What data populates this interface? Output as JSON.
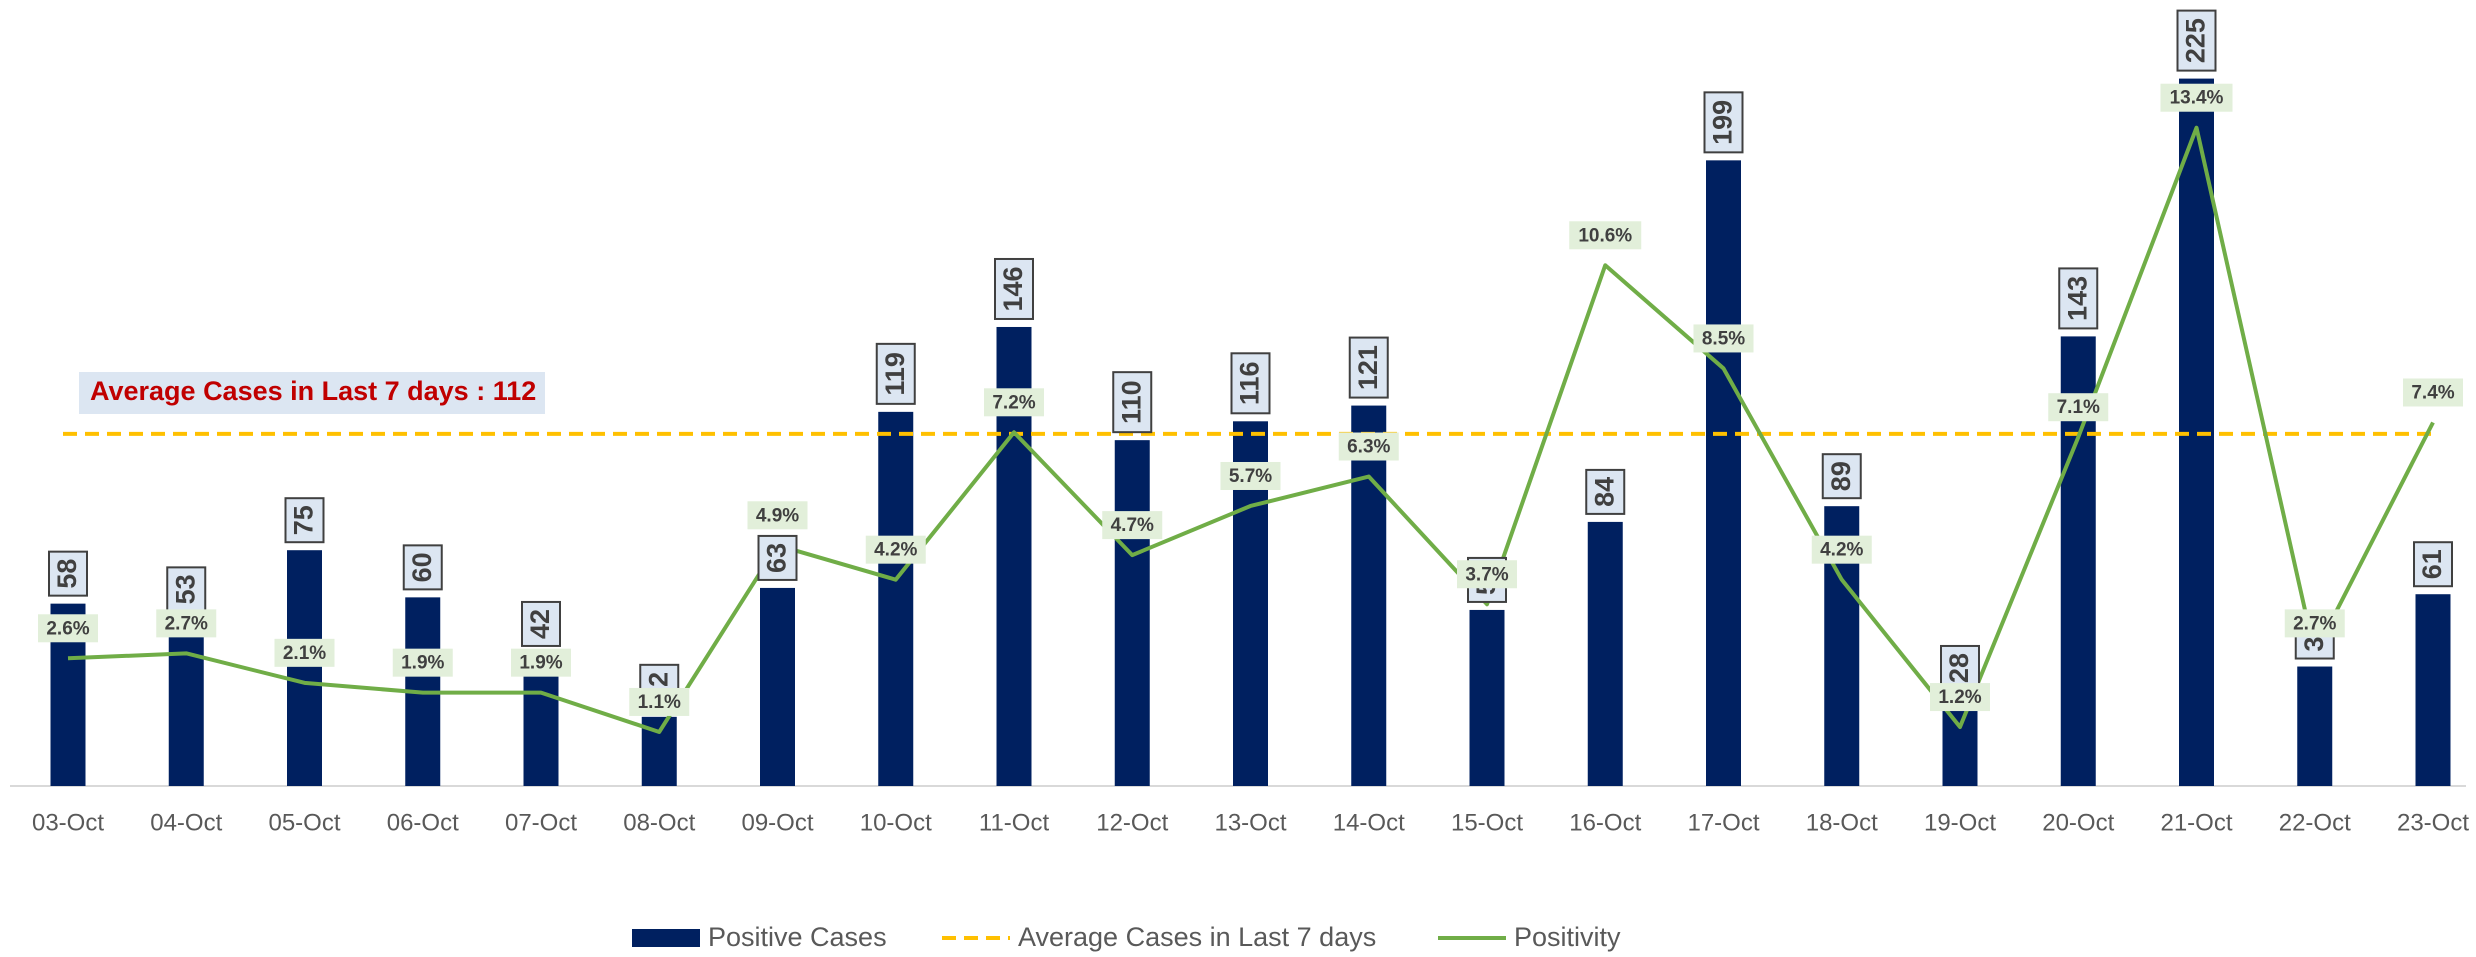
{
  "chart_data": {
    "type": "bar_line",
    "categories": [
      "03-Oct",
      "04-Oct",
      "05-Oct",
      "06-Oct",
      "07-Oct",
      "08-Oct",
      "09-Oct",
      "10-Oct",
      "11-Oct",
      "12-Oct",
      "13-Oct",
      "14-Oct",
      "15-Oct",
      "16-Oct",
      "17-Oct",
      "18-Oct",
      "19-Oct",
      "20-Oct",
      "21-Oct",
      "22-Oct",
      "23-Oct"
    ],
    "series": [
      {
        "name": "Positive Cases",
        "color": "#002060",
        "type": "bar",
        "values": [
          58,
          53,
          75,
          60,
          42,
          22,
          63,
          119,
          146,
          110,
          116,
          121,
          56,
          84,
          199,
          89,
          28,
          143,
          225,
          38,
          61
        ]
      },
      {
        "name": "Average Cases in Last 7 days",
        "color": "#ffc000",
        "type": "dashed-line",
        "values": [
          112,
          112,
          112,
          112,
          112,
          112,
          112,
          112,
          112,
          112,
          112,
          112,
          112,
          112,
          112,
          112,
          112,
          112,
          112,
          112,
          112
        ]
      },
      {
        "name": "Positivity",
        "color": "#70ad47",
        "type": "line",
        "axis": "y2",
        "values": [
          2.6,
          2.7,
          2.1,
          1.9,
          1.9,
          1.1,
          4.9,
          4.2,
          7.2,
          4.7,
          5.7,
          6.3,
          3.7,
          10.6,
          8.5,
          4.2,
          1.2,
          7.1,
          13.4,
          2.7,
          7.4
        ],
        "value_labels": [
          "2.6%",
          "2.7%",
          "2.1%",
          "1.9%",
          "1.9%",
          "1.1%",
          "4.9%",
          "4.2%",
          "7.2%",
          "4.7%",
          "5.7%",
          "6.3%",
          "3.7%",
          "10.6%",
          "8.5%",
          "4.2%",
          "1.2%",
          "7.1%",
          "13.4%",
          "2.7%",
          "7.4%"
        ]
      }
    ],
    "annotation": "Average Cases in Last 7 days : 112",
    "ylim": [
      0,
      250
    ],
    "y2lim": [
      0,
      16
    ],
    "grid": false,
    "legend": "bottom"
  }
}
